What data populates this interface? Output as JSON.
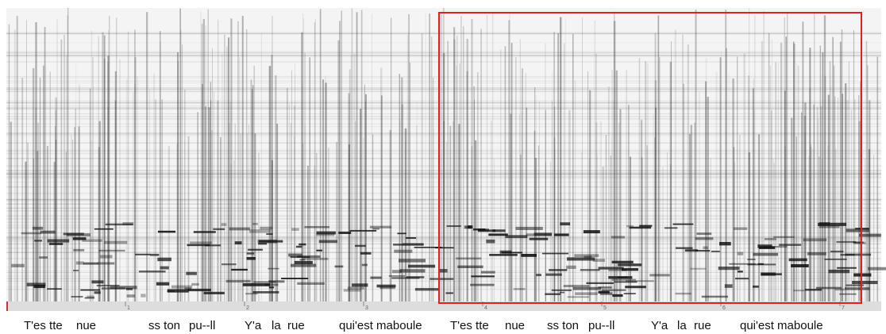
{
  "ruler": {
    "ticks": [
      1,
      2,
      3,
      4,
      5,
      6,
      7
    ]
  },
  "lyrics": [
    "T'es tte",
    "nue",
    "ss ton",
    "pu--ll",
    "Y'a",
    "la",
    "rue",
    "qui'est maboule",
    "T'es tte",
    "nue",
    "ss ton",
    "pu--ll",
    "Y'a",
    "la",
    "rue",
    "qui'est maboule"
  ]
}
